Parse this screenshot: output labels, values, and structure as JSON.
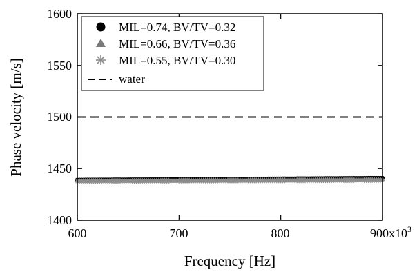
{
  "chart_data": {
    "type": "scatter",
    "xlabel": "Frequency [Hz]",
    "ylabel": "Phase velocity [m/s]",
    "xlim": [
      600,
      900
    ],
    "ylim": [
      1400,
      1600
    ],
    "x_scale_label": "x10",
    "x_scale_exponent": "3",
    "x_ticks": [
      "600",
      "700",
      "800",
      "900"
    ],
    "y_ticks": [
      "1400",
      "1450",
      "1500",
      "1550",
      "1600"
    ],
    "legend_position": "top-left",
    "grid": false,
    "x_units": "kHz (x10^3 Hz)",
    "x_step": 2,
    "series": [
      {
        "name": "MIL=0.74, BV/TV=0.32",
        "marker": "circle",
        "color": "#000000",
        "y_start": 1439.0,
        "y_end": 1440.8
      },
      {
        "name": "MIL=0.66, BV/TV=0.36",
        "marker": "triangle",
        "color": "#7a7a7a",
        "y_start": 1438.6,
        "y_end": 1439.8
      },
      {
        "name": "MIL=0.55, BV/TV=0.30",
        "marker": "asterisk",
        "color": "#8c8c8c",
        "y_start": 1437.6,
        "y_end": 1438.6
      },
      {
        "name": "water",
        "marker": "dashed-line",
        "color": "#000000",
        "y_start": 1500,
        "y_end": 1500
      }
    ]
  }
}
